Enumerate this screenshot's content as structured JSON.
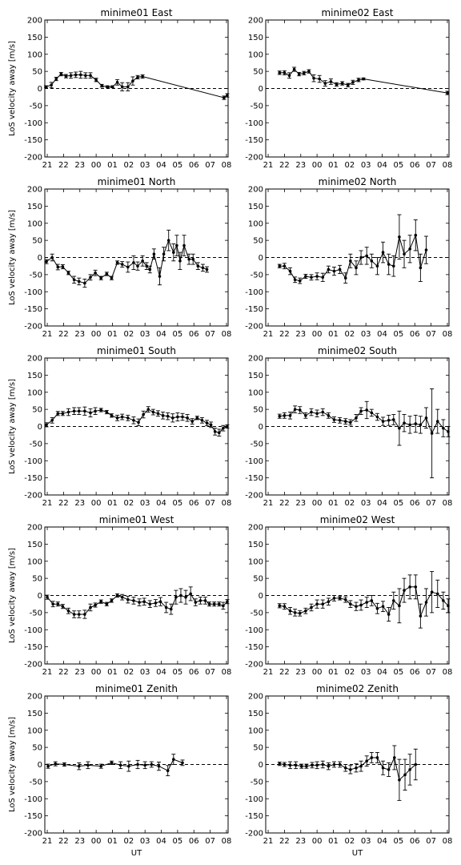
{
  "figure": {
    "ylabel": "LoS velocity away [m/s]",
    "xlabel": "UT"
  },
  "chart_data": [
    {
      "type": "line",
      "title": "minime01 East",
      "xlim": [
        20.85,
        32.1
      ],
      "ylim": [
        -200,
        200
      ],
      "xticks": [
        21,
        22,
        23,
        24,
        25,
        26,
        27,
        28,
        29,
        30,
        31,
        32
      ],
      "xticklabels": [
        "21",
        "22",
        "23",
        "00",
        "01",
        "02",
        "03",
        "04",
        "05",
        "06",
        "07",
        "08"
      ],
      "yticks": [
        200,
        150,
        100,
        50,
        0,
        -50,
        -100,
        -150,
        -200
      ],
      "hline": 0,
      "x": [
        20.92,
        21.25,
        21.55,
        21.85,
        22.15,
        22.45,
        22.75,
        23.05,
        23.35,
        23.65,
        24.0,
        24.35,
        24.7,
        25.0,
        25.3,
        25.6,
        25.95,
        26.25,
        26.55,
        26.85,
        31.85,
        32.05
      ],
      "y": [
        5,
        10,
        28,
        42,
        36,
        38,
        40,
        40,
        38,
        38,
        25,
        8,
        5,
        5,
        18,
        5,
        5,
        22,
        33,
        35,
        -27,
        -20
      ],
      "err": [
        3,
        8,
        5,
        5,
        5,
        8,
        8,
        10,
        8,
        8,
        5,
        4,
        3,
        3,
        8,
        12,
        12,
        12,
        5,
        5,
        5,
        5
      ]
    },
    {
      "type": "line",
      "title": "minime02 East",
      "xlim": [
        20.85,
        32.1
      ],
      "ylim": [
        -200,
        200
      ],
      "xticks": [
        21,
        22,
        23,
        24,
        25,
        26,
        27,
        28,
        29,
        30,
        31,
        32
      ],
      "xticklabels": [
        "21",
        "22",
        "23",
        "00",
        "01",
        "02",
        "03",
        "04",
        "05",
        "06",
        "07",
        "08"
      ],
      "yticks": [
        200,
        150,
        100,
        50,
        0,
        -50,
        -100,
        -150,
        -200
      ],
      "hline": 0,
      "x": [
        21.7,
        22.0,
        22.3,
        22.6,
        22.9,
        23.2,
        23.5,
        23.8,
        24.15,
        24.5,
        24.85,
        25.2,
        25.55,
        25.9,
        26.2,
        26.55,
        26.85,
        32.0
      ],
      "y": [
        46,
        46,
        38,
        56,
        42,
        45,
        50,
        30,
        28,
        15,
        20,
        12,
        15,
        10,
        18,
        25,
        28,
        -13
      ],
      "err": [
        5,
        6,
        8,
        6,
        5,
        5,
        5,
        10,
        10,
        8,
        8,
        5,
        5,
        5,
        6,
        5,
        3,
        5
      ]
    },
    {
      "type": "line",
      "title": "minime01 North",
      "xlim": [
        20.85,
        32.1
      ],
      "ylim": [
        -200,
        200
      ],
      "xticks": [
        21,
        22,
        23,
        24,
        25,
        26,
        27,
        28,
        29,
        30,
        31,
        32
      ],
      "xticklabels": [
        "21",
        "22",
        "23",
        "00",
        "01",
        "02",
        "03",
        "04",
        "05",
        "06",
        "07",
        "08"
      ],
      "yticks": [
        200,
        150,
        100,
        50,
        0,
        -50,
        -100,
        -150,
        -200
      ],
      "hline": 0,
      "x": [
        20.95,
        21.3,
        21.65,
        21.95,
        22.3,
        22.65,
        22.95,
        23.3,
        23.65,
        23.95,
        24.3,
        24.65,
        24.95,
        25.3,
        25.6,
        25.95,
        26.3,
        26.55,
        26.85,
        27.1,
        27.3,
        27.55,
        27.9,
        28.15,
        28.45,
        28.75,
        28.95,
        29.15,
        29.4,
        29.7,
        29.95,
        30.25,
        30.55,
        30.8
      ],
      "y": [
        -12,
        0,
        -28,
        -27,
        -45,
        -65,
        -70,
        -75,
        -58,
        -45,
        -60,
        -48,
        -60,
        -15,
        -20,
        -28,
        -15,
        -25,
        -10,
        -25,
        -35,
        10,
        -55,
        10,
        50,
        15,
        35,
        -10,
        35,
        -5,
        -5,
        -25,
        -30,
        -35
      ],
      "err": [
        6,
        10,
        8,
        6,
        5,
        10,
        10,
        12,
        8,
        8,
        5,
        5,
        5,
        5,
        8,
        15,
        20,
        12,
        15,
        10,
        10,
        15,
        25,
        20,
        30,
        25,
        30,
        25,
        30,
        15,
        15,
        10,
        10,
        8
      ]
    },
    {
      "type": "line",
      "title": "minime02 North",
      "xlim": [
        20.85,
        32.1
      ],
      "ylim": [
        -200,
        200
      ],
      "xticks": [
        21,
        22,
        23,
        24,
        25,
        26,
        27,
        28,
        29,
        30,
        31,
        32
      ],
      "xticklabels": [
        "21",
        "22",
        "23",
        "00",
        "01",
        "02",
        "03",
        "04",
        "05",
        "06",
        "07",
        "08"
      ],
      "yticks": [
        200,
        150,
        100,
        50,
        0,
        -50,
        -100,
        -150,
        -200
      ],
      "hline": 0,
      "x": [
        21.7,
        22.0,
        22.35,
        22.65,
        22.95,
        23.3,
        23.65,
        24.0,
        24.35,
        24.7,
        25.05,
        25.4,
        25.75,
        26.05,
        26.4,
        26.7,
        27.05,
        27.35,
        27.7,
        28.05,
        28.4,
        28.7,
        29.05,
        29.35,
        29.7,
        30.05,
        30.35,
        30.7
      ],
      "y": [
        -25,
        -25,
        -40,
        -65,
        -68,
        -55,
        -58,
        -55,
        -58,
        -35,
        -40,
        -35,
        -60,
        -10,
        -30,
        0,
        5,
        -10,
        -25,
        15,
        -20,
        -25,
        60,
        10,
        25,
        65,
        -30,
        22
      ],
      "err": [
        5,
        8,
        10,
        8,
        8,
        6,
        8,
        10,
        12,
        10,
        12,
        12,
        15,
        20,
        20,
        20,
        25,
        20,
        25,
        30,
        30,
        30,
        65,
        40,
        40,
        45,
        40,
        40
      ]
    },
    {
      "type": "line",
      "title": "minime01 South",
      "xlim": [
        20.85,
        32.1
      ],
      "ylim": [
        -200,
        200
      ],
      "xticks": [
        21,
        22,
        23,
        24,
        25,
        26,
        27,
        28,
        29,
        30,
        31,
        32
      ],
      "xticklabels": [
        "21",
        "22",
        "23",
        "00",
        "01",
        "02",
        "03",
        "04",
        "05",
        "06",
        "07",
        "08"
      ],
      "yticks": [
        200,
        150,
        100,
        50,
        0,
        -50,
        -100,
        -150,
        -200
      ],
      "hline": 0,
      "x": [
        20.95,
        21.3,
        21.65,
        21.95,
        22.3,
        22.65,
        22.95,
        23.3,
        23.65,
        23.95,
        24.3,
        24.65,
        24.95,
        25.3,
        25.6,
        25.95,
        26.3,
        26.6,
        26.9,
        27.2,
        27.5,
        27.8,
        28.1,
        28.4,
        28.7,
        29.0,
        29.3,
        29.6,
        29.9,
        30.2,
        30.5,
        30.8,
        31.05,
        31.3,
        31.55,
        31.8,
        32.05
      ],
      "y": [
        5,
        18,
        38,
        38,
        42,
        45,
        45,
        45,
        40,
        45,
        48,
        42,
        32,
        25,
        28,
        25,
        18,
        12,
        35,
        50,
        42,
        38,
        32,
        30,
        25,
        28,
        28,
        25,
        15,
        25,
        18,
        10,
        5,
        -15,
        -18,
        -5,
        0
      ],
      "err": [
        6,
        8,
        6,
        6,
        10,
        10,
        10,
        12,
        12,
        10,
        5,
        5,
        5,
        8,
        8,
        8,
        10,
        10,
        10,
        8,
        8,
        8,
        10,
        10,
        12,
        12,
        10,
        10,
        8,
        5,
        8,
        8,
        8,
        10,
        10,
        8,
        5
      ]
    },
    {
      "type": "line",
      "title": "minime02 South",
      "xlim": [
        20.85,
        32.1
      ],
      "ylim": [
        -200,
        200
      ],
      "xticks": [
        21,
        22,
        23,
        24,
        25,
        26,
        27,
        28,
        29,
        30,
        31,
        32
      ],
      "xticklabels": [
        "21",
        "22",
        "23",
        "00",
        "01",
        "02",
        "03",
        "04",
        "05",
        "06",
        "07",
        "08"
      ],
      "yticks": [
        200,
        150,
        100,
        50,
        0,
        -50,
        -100,
        -150,
        -200
      ],
      "hline": 0,
      "x": [
        21.7,
        22.0,
        22.35,
        22.65,
        22.95,
        23.3,
        23.65,
        24.0,
        24.35,
        24.7,
        25.05,
        25.4,
        25.75,
        26.05,
        26.4,
        26.7,
        27.05,
        27.35,
        27.7,
        28.05,
        28.4,
        28.7,
        29.05,
        29.35,
        29.7,
        30.05,
        30.35,
        30.7,
        31.05,
        31.4,
        31.75,
        32.05
      ],
      "y": [
        30,
        32,
        32,
        50,
        48,
        32,
        42,
        38,
        42,
        32,
        20,
        18,
        15,
        12,
        25,
        45,
        48,
        40,
        28,
        15,
        18,
        20,
        -5,
        10,
        5,
        8,
        5,
        25,
        -20,
        15,
        -5,
        -15
      ],
      "err": [
        6,
        8,
        10,
        10,
        10,
        8,
        10,
        10,
        10,
        8,
        8,
        8,
        8,
        8,
        10,
        10,
        25,
        10,
        10,
        12,
        15,
        15,
        50,
        25,
        25,
        25,
        25,
        30,
        130,
        35,
        25,
        15
      ]
    },
    {
      "type": "line",
      "title": "minime01 West",
      "xlim": [
        20.85,
        32.1
      ],
      "ylim": [
        -200,
        200
      ],
      "xticks": [
        21,
        22,
        23,
        24,
        25,
        26,
        27,
        28,
        29,
        30,
        31,
        32
      ],
      "xticklabels": [
        "21",
        "22",
        "23",
        "00",
        "01",
        "02",
        "03",
        "04",
        "05",
        "06",
        "07",
        "08"
      ],
      "yticks": [
        200,
        150,
        100,
        50,
        0,
        -50,
        -100,
        -150,
        -200
      ],
      "hline": 0,
      "x": [
        21.0,
        21.35,
        21.65,
        21.95,
        22.3,
        22.65,
        22.95,
        23.3,
        23.65,
        23.95,
        24.3,
        24.65,
        24.95,
        25.3,
        25.6,
        25.95,
        26.3,
        26.65,
        26.95,
        27.3,
        27.65,
        27.95,
        28.3,
        28.6,
        28.9,
        29.2,
        29.5,
        29.8,
        30.1,
        30.4,
        30.7,
        30.95,
        31.25,
        31.55,
        31.8,
        32.05
      ],
      "y": [
        -5,
        -25,
        -25,
        -32,
        -45,
        -55,
        -55,
        -55,
        -35,
        -28,
        -18,
        -25,
        -15,
        0,
        -5,
        -12,
        -15,
        -20,
        -18,
        -25,
        -22,
        -18,
        -35,
        -40,
        -5,
        0,
        -5,
        5,
        -20,
        -15,
        -15,
        -25,
        -25,
        -25,
        -30,
        -18
      ],
      "err": [
        6,
        8,
        6,
        6,
        8,
        10,
        10,
        12,
        10,
        6,
        5,
        5,
        5,
        5,
        8,
        10,
        10,
        10,
        10,
        10,
        10,
        12,
        15,
        15,
        20,
        20,
        20,
        20,
        10,
        10,
        10,
        6,
        6,
        6,
        10,
        6
      ]
    },
    {
      "type": "line",
      "title": "minime02 West",
      "xlim": [
        20.85,
        32.1
      ],
      "ylim": [
        -200,
        200
      ],
      "xticks": [
        21,
        22,
        23,
        24,
        25,
        26,
        27,
        28,
        29,
        30,
        31,
        32
      ],
      "xticklabels": [
        "21",
        "22",
        "23",
        "00",
        "01",
        "02",
        "03",
        "04",
        "05",
        "06",
        "07",
        "08"
      ],
      "yticks": [
        200,
        150,
        100,
        50,
        0,
        -50,
        -100,
        -150,
        -200
      ],
      "hline": 0,
      "x": [
        21.7,
        22.0,
        22.35,
        22.65,
        22.95,
        23.3,
        23.65,
        24.0,
        24.35,
        24.7,
        25.05,
        25.4,
        25.75,
        26.05,
        26.4,
        26.7,
        27.05,
        27.35,
        27.7,
        28.05,
        28.4,
        28.7,
        29.05,
        29.35,
        29.7,
        30.05,
        30.35,
        30.7,
        31.05,
        31.4,
        31.75,
        32.05
      ],
      "y": [
        -30,
        -32,
        -45,
        -50,
        -52,
        -45,
        -35,
        -25,
        -25,
        -18,
        -8,
        -8,
        -12,
        -25,
        -32,
        -28,
        -20,
        -15,
        -38,
        -32,
        -55,
        -15,
        -30,
        15,
        25,
        25,
        -60,
        -20,
        10,
        5,
        -15,
        -30
      ],
      "err": [
        6,
        8,
        10,
        10,
        8,
        8,
        10,
        12,
        12,
        10,
        8,
        5,
        8,
        10,
        12,
        15,
        15,
        15,
        15,
        15,
        20,
        25,
        50,
        35,
        35,
        35,
        35,
        40,
        60,
        40,
        25,
        20
      ]
    },
    {
      "type": "line",
      "title": "minime01 Zenith",
      "xlim": [
        20.85,
        32.1
      ],
      "ylim": [
        -200,
        200
      ],
      "xticks": [
        21,
        22,
        23,
        24,
        25,
        26,
        27,
        28,
        29,
        30,
        31,
        32
      ],
      "xticklabels": [
        "21",
        "22",
        "23",
        "00",
        "01",
        "02",
        "03",
        "04",
        "05",
        "06",
        "07",
        "08"
      ],
      "yticks": [
        200,
        150,
        100,
        50,
        0,
        -50,
        -100,
        -150,
        -200
      ],
      "hline": 0,
      "x": [
        21.05,
        21.5,
        22.05,
        22.95,
        23.5,
        24.3,
        24.95,
        25.5,
        26.0,
        26.55,
        27.0,
        27.4,
        27.85,
        28.4,
        28.75,
        29.3
      ],
      "y": [
        -5,
        2,
        0,
        -5,
        -2,
        -5,
        5,
        -2,
        -5,
        0,
        -2,
        0,
        -5,
        -18,
        15,
        5
      ],
      "err": [
        6,
        6,
        5,
        10,
        10,
        6,
        5,
        10,
        15,
        12,
        10,
        8,
        12,
        15,
        15,
        8
      ]
    },
    {
      "type": "line",
      "title": "minime02 Zenith",
      "xlim": [
        20.85,
        32.1
      ],
      "ylim": [
        -200,
        200
      ],
      "xticks": [
        21,
        22,
        23,
        24,
        25,
        26,
        27,
        28,
        29,
        30,
        31,
        32
      ],
      "xticklabels": [
        "21",
        "22",
        "23",
        "00",
        "01",
        "02",
        "03",
        "04",
        "05",
        "06",
        "07",
        "08"
      ],
      "yticks": [
        200,
        150,
        100,
        50,
        0,
        -50,
        -100,
        -150,
        -200
      ],
      "hline": 0,
      "x": [
        21.7,
        22.0,
        22.35,
        22.7,
        23.05,
        23.35,
        23.7,
        24.0,
        24.35,
        24.7,
        25.05,
        25.4,
        25.75,
        26.05,
        26.4,
        26.7,
        27.05,
        27.35,
        27.7,
        28.05,
        28.4,
        28.75,
        29.05,
        29.4,
        29.7,
        30.05
      ],
      "y": [
        2,
        0,
        -2,
        -2,
        -5,
        -5,
        -2,
        -2,
        0,
        -5,
        0,
        0,
        -10,
        -15,
        -10,
        -5,
        10,
        20,
        20,
        -10,
        -15,
        20,
        -45,
        -30,
        -15,
        0
      ],
      "err": [
        5,
        6,
        10,
        10,
        6,
        6,
        8,
        10,
        10,
        10,
        8,
        8,
        10,
        12,
        12,
        15,
        15,
        15,
        15,
        20,
        20,
        35,
        60,
        45,
        45,
        45
      ]
    }
  ]
}
